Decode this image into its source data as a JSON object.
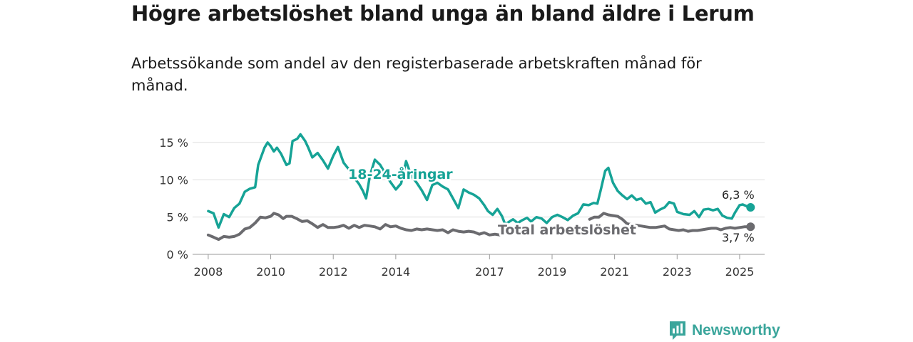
{
  "title": "Högre arbetslöshet bland unga än bland äldre i Lerum",
  "subtitle": "Arbetssökande som andel av den registerbaserade arbetskraften månad för månad.",
  "brand": {
    "name": "Newsworthy",
    "icon": "newsworthy-chart-logo-icon",
    "color": "#3aa59b"
  },
  "chart_data": {
    "type": "line",
    "title": "",
    "xlabel": "",
    "ylabel": "",
    "ylim": [
      0,
      15
    ],
    "xlim": [
      2007.5,
      2025.8
    ],
    "yticks": [
      0,
      5,
      10,
      15
    ],
    "ytick_labels": [
      "0 %",
      "5 %",
      "10 %",
      "15 %"
    ],
    "xticks": [
      2008,
      2010,
      2012,
      2014,
      2017,
      2019,
      2021,
      2023,
      2025
    ],
    "xtick_labels": [
      "2008",
      "2010",
      "2012",
      "2014",
      "2017",
      "2019",
      "2021",
      "2023",
      "2025"
    ],
    "grid": "horizontal",
    "legend": "none",
    "series": [
      {
        "name": "18-24-åringar",
        "color": "#16a396",
        "label_color": "#16a396",
        "end_label": "6,3 %",
        "points": [
          [
            2008.0,
            5.8
          ],
          [
            2008.17,
            5.5
          ],
          [
            2008.33,
            3.6
          ],
          [
            2008.5,
            5.4
          ],
          [
            2008.67,
            5.0
          ],
          [
            2008.83,
            6.2
          ],
          [
            2009.0,
            6.8
          ],
          [
            2009.17,
            8.4
          ],
          [
            2009.33,
            8.8
          ],
          [
            2009.5,
            9.0
          ],
          [
            2009.6,
            12.0
          ],
          [
            2009.8,
            14.3
          ],
          [
            2009.9,
            15.0
          ],
          [
            2010.0,
            14.5
          ],
          [
            2010.1,
            13.8
          ],
          [
            2010.2,
            14.3
          ],
          [
            2010.33,
            13.5
          ],
          [
            2010.5,
            12.0
          ],
          [
            2010.6,
            12.2
          ],
          [
            2010.7,
            15.2
          ],
          [
            2010.85,
            15.5
          ],
          [
            2010.95,
            16.1
          ],
          [
            2011.1,
            15.2
          ],
          [
            2011.2,
            14.3
          ],
          [
            2011.33,
            13.0
          ],
          [
            2011.5,
            13.6
          ],
          [
            2011.67,
            12.6
          ],
          [
            2011.83,
            11.5
          ],
          [
            2012.0,
            13.2
          ],
          [
            2012.15,
            14.4
          ],
          [
            2012.33,
            12.3
          ],
          [
            2012.5,
            11.4
          ],
          [
            2012.67,
            10.3
          ],
          [
            2012.83,
            9.4
          ],
          [
            2012.95,
            8.5
          ],
          [
            2013.05,
            7.5
          ],
          [
            2013.17,
            10.5
          ],
          [
            2013.33,
            12.7
          ],
          [
            2013.5,
            12.0
          ],
          [
            2013.67,
            10.8
          ],
          [
            2013.83,
            9.7
          ],
          [
            2014.0,
            8.7
          ],
          [
            2014.17,
            9.5
          ],
          [
            2014.33,
            12.5
          ],
          [
            2014.5,
            10.5
          ],
          [
            2014.67,
            9.6
          ],
          [
            2014.83,
            8.6
          ],
          [
            2015.0,
            7.3
          ],
          [
            2015.17,
            9.3
          ],
          [
            2015.33,
            9.6
          ],
          [
            2015.5,
            9.1
          ],
          [
            2015.67,
            8.7
          ],
          [
            2015.83,
            7.5
          ],
          [
            2016.0,
            6.2
          ],
          [
            2016.17,
            8.7
          ],
          [
            2016.33,
            8.3
          ],
          [
            2016.5,
            8.0
          ],
          [
            2016.67,
            7.5
          ],
          [
            2016.83,
            6.6
          ],
          [
            2016.95,
            5.8
          ],
          [
            2017.1,
            5.3
          ],
          [
            2017.25,
            6.1
          ],
          [
            2017.4,
            5.1
          ],
          [
            2017.5,
            4.0
          ],
          [
            2017.6,
            4.3
          ],
          [
            2017.75,
            4.7
          ],
          [
            2017.9,
            4.2
          ],
          [
            2018.05,
            4.6
          ],
          [
            2018.2,
            4.9
          ],
          [
            2018.33,
            4.4
          ],
          [
            2018.5,
            5.0
          ],
          [
            2018.67,
            4.8
          ],
          [
            2018.83,
            4.2
          ],
          [
            2019.0,
            5.0
          ],
          [
            2019.17,
            5.3
          ],
          [
            2019.33,
            5.0
          ],
          [
            2019.5,
            4.6
          ],
          [
            2019.67,
            5.2
          ],
          [
            2019.83,
            5.5
          ],
          [
            2020.0,
            6.7
          ],
          [
            2020.17,
            6.6
          ],
          [
            2020.33,
            6.9
          ],
          [
            2020.45,
            6.8
          ],
          [
            2020.55,
            8.5
          ],
          [
            2020.7,
            11.2
          ],
          [
            2020.8,
            11.6
          ],
          [
            2020.95,
            9.6
          ],
          [
            2021.1,
            8.5
          ],
          [
            2021.25,
            7.9
          ],
          [
            2021.4,
            7.4
          ],
          [
            2021.55,
            7.9
          ],
          [
            2021.7,
            7.3
          ],
          [
            2021.85,
            7.5
          ],
          [
            2022.0,
            6.8
          ],
          [
            2022.15,
            7.0
          ],
          [
            2022.3,
            5.6
          ],
          [
            2022.45,
            6.0
          ],
          [
            2022.6,
            6.3
          ],
          [
            2022.75,
            7.0
          ],
          [
            2022.9,
            6.8
          ],
          [
            2023.0,
            5.7
          ],
          [
            2023.2,
            5.4
          ],
          [
            2023.4,
            5.3
          ],
          [
            2023.55,
            5.8
          ],
          [
            2023.7,
            5.0
          ],
          [
            2023.85,
            6.0
          ],
          [
            2024.0,
            6.1
          ],
          [
            2024.15,
            5.9
          ],
          [
            2024.3,
            6.1
          ],
          [
            2024.45,
            5.2
          ],
          [
            2024.6,
            4.9
          ],
          [
            2024.75,
            4.8
          ],
          [
            2024.85,
            5.6
          ],
          [
            2025.0,
            6.6
          ],
          [
            2025.1,
            6.7
          ],
          [
            2025.25,
            6.4
          ],
          [
            2025.35,
            6.3
          ]
        ]
      },
      {
        "name": "Total arbetslöshet",
        "color": "#6b6b6f",
        "label_color": "#6b6b6f",
        "end_label": "3,7 %",
        "points": [
          [
            2008.0,
            2.6
          ],
          [
            2008.17,
            2.3
          ],
          [
            2008.33,
            2.0
          ],
          [
            2008.5,
            2.4
          ],
          [
            2008.67,
            2.3
          ],
          [
            2008.83,
            2.4
          ],
          [
            2009.0,
            2.7
          ],
          [
            2009.17,
            3.4
          ],
          [
            2009.33,
            3.6
          ],
          [
            2009.5,
            4.2
          ],
          [
            2009.67,
            5.0
          ],
          [
            2009.83,
            4.9
          ],
          [
            2010.0,
            5.1
          ],
          [
            2010.1,
            5.5
          ],
          [
            2010.25,
            5.3
          ],
          [
            2010.4,
            4.8
          ],
          [
            2010.5,
            5.1
          ],
          [
            2010.67,
            5.1
          ],
          [
            2010.83,
            4.8
          ],
          [
            2011.0,
            4.4
          ],
          [
            2011.17,
            4.5
          ],
          [
            2011.33,
            4.1
          ],
          [
            2011.5,
            3.6
          ],
          [
            2011.67,
            4.0
          ],
          [
            2011.83,
            3.6
          ],
          [
            2012.0,
            3.6
          ],
          [
            2012.17,
            3.7
          ],
          [
            2012.33,
            3.9
          ],
          [
            2012.5,
            3.5
          ],
          [
            2012.67,
            3.9
          ],
          [
            2012.83,
            3.6
          ],
          [
            2013.0,
            3.9
          ],
          [
            2013.17,
            3.8
          ],
          [
            2013.33,
            3.7
          ],
          [
            2013.5,
            3.4
          ],
          [
            2013.67,
            4.0
          ],
          [
            2013.83,
            3.7
          ],
          [
            2014.0,
            3.8
          ],
          [
            2014.17,
            3.5
          ],
          [
            2014.33,
            3.3
          ],
          [
            2014.5,
            3.2
          ],
          [
            2014.67,
            3.4
          ],
          [
            2014.83,
            3.3
          ],
          [
            2015.0,
            3.4
          ],
          [
            2015.17,
            3.3
          ],
          [
            2015.33,
            3.2
          ],
          [
            2015.5,
            3.3
          ],
          [
            2015.67,
            2.9
          ],
          [
            2015.83,
            3.3
          ],
          [
            2016.0,
            3.1
          ],
          [
            2016.17,
            3.0
          ],
          [
            2016.33,
            3.1
          ],
          [
            2016.5,
            3.0
          ],
          [
            2016.67,
            2.7
          ],
          [
            2016.83,
            2.9
          ],
          [
            2017.0,
            2.6
          ],
          [
            2017.17,
            2.7
          ],
          [
            2017.33,
            2.6
          ],
          [
            2017.5,
            2.8
          ]
        ],
        "points_right": [
          [
            2021.4,
            4.1
          ],
          [
            2021.55,
            4.0
          ],
          [
            2021.7,
            3.9
          ],
          [
            2021.85,
            3.8
          ],
          [
            2022.0,
            3.7
          ],
          [
            2022.15,
            3.6
          ],
          [
            2022.3,
            3.6
          ],
          [
            2022.45,
            3.7
          ],
          [
            2022.6,
            3.8
          ],
          [
            2022.75,
            3.4
          ],
          [
            2022.9,
            3.3
          ],
          [
            2023.05,
            3.2
          ],
          [
            2023.2,
            3.3
          ],
          [
            2023.35,
            3.1
          ],
          [
            2023.5,
            3.2
          ],
          [
            2023.65,
            3.2
          ],
          [
            2023.8,
            3.3
          ],
          [
            2023.95,
            3.4
          ],
          [
            2024.1,
            3.5
          ],
          [
            2024.25,
            3.5
          ],
          [
            2024.4,
            3.3
          ],
          [
            2024.55,
            3.5
          ],
          [
            2024.7,
            3.6
          ],
          [
            2024.85,
            3.5
          ],
          [
            2025.0,
            3.6
          ],
          [
            2025.15,
            3.7
          ],
          [
            2025.35,
            3.7
          ]
        ],
        "points_mid": [
          [
            2020.2,
            4.7
          ],
          [
            2020.35,
            5.0
          ],
          [
            2020.5,
            5.0
          ],
          [
            2020.65,
            5.5
          ],
          [
            2020.8,
            5.3
          ],
          [
            2020.95,
            5.2
          ],
          [
            2021.1,
            5.1
          ],
          [
            2021.25,
            4.7
          ],
          [
            2021.4,
            4.1
          ]
        ]
      }
    ],
    "annotations": [
      "18-24-åringar",
      "Total arbetslöshet",
      "6,3 %",
      "3,7 %"
    ]
  }
}
